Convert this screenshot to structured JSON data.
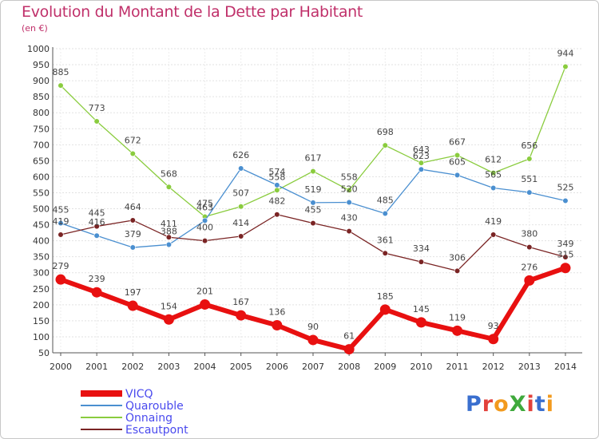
{
  "title": "Evolution du Montant de la Dette par Habitant",
  "unit": "(en €)",
  "logo": {
    "text": "ProXiti",
    "letter_colors": [
      "#3a6fcf",
      "#e2413b",
      "#f29a1e",
      "#3fa93c",
      "#e2413b",
      "#3a6fcf",
      "#f29a1e"
    ]
  },
  "chart_data": {
    "type": "line",
    "title": "Evolution du Montant de la Dette par Habitant",
    "ylabel": "(en €)",
    "xlabel": "",
    "ylim": [
      50,
      1000
    ],
    "yticks": [
      50,
      100,
      150,
      200,
      250,
      300,
      350,
      400,
      450,
      500,
      550,
      600,
      650,
      700,
      750,
      800,
      850,
      900,
      950,
      1000
    ],
    "categories": [
      "2000",
      "2001",
      "2002",
      "2003",
      "2004",
      "2005",
      "2006",
      "2007",
      "2008",
      "2009",
      "2010",
      "2011",
      "2012",
      "2013",
      "2014"
    ],
    "series": [
      {
        "name": "VICQ",
        "color": "#e81010",
        "legend_color": "#4a4aee",
        "emphasis": true,
        "values": [
          279,
          239,
          197,
          154,
          201,
          167,
          136,
          90,
          61,
          185,
          145,
          119,
          93,
          276,
          315
        ]
      },
      {
        "name": "Quarouble",
        "color": "#4a8fd0",
        "legend_color": "#4a4aee",
        "values": [
          455,
          416,
          379,
          388,
          463,
          626,
          574,
          519,
          520,
          485,
          623,
          605,
          565,
          551,
          525
        ],
        "labels": [
          "455",
          "416",
          "379",
          "388",
          "463",
          "626",
          "574",
          "519",
          "520",
          "485",
          "623",
          "605",
          "565",
          "551",
          "525"
        ]
      },
      {
        "name": "Onnaing",
        "color": "#8acc3e",
        "legend_color": "#4a4aee",
        "values": [
          885,
          773,
          672,
          568,
          475,
          507,
          558,
          617,
          558,
          698,
          643,
          667,
          612,
          656,
          944
        ]
      },
      {
        "name": "Escautpont",
        "color": "#7a2424",
        "legend_color": "#4a4aee",
        "values": [
          419,
          445,
          464,
          411,
          400,
          414,
          482,
          455,
          430,
          361,
          334,
          306,
          419,
          380,
          349
        ]
      }
    ],
    "legend_position": "bottom-left"
  }
}
